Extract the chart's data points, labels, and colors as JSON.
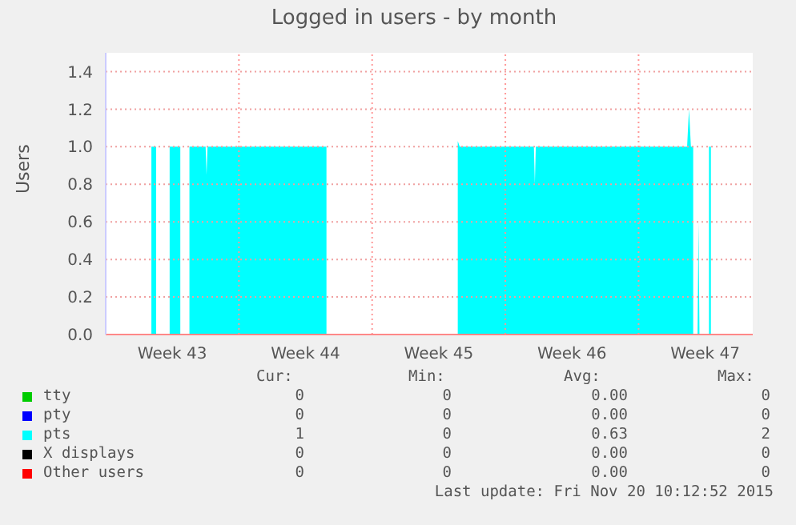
{
  "chart_data": {
    "type": "area",
    "title": "Logged in users - by month",
    "ylabel": "Users",
    "xlim": [
      "2015-10-19T00:00",
      "2015-11-22T00:00"
    ],
    "xticks": [
      {
        "value": "2015-10-22T12:00",
        "label": "Week 43"
      },
      {
        "value": "2015-10-26T00:00",
        "label": null
      },
      {
        "value": "2015-10-29T12:00",
        "label": "Week 44"
      },
      {
        "value": "2015-11-02T00:00",
        "label": null
      },
      {
        "value": "2015-11-05T12:00",
        "label": "Week 45"
      },
      {
        "value": "2015-11-09T00:00",
        "label": null
      },
      {
        "value": "2015-11-12T12:00",
        "label": "Week 46"
      },
      {
        "value": "2015-11-16T00:00",
        "label": null
      },
      {
        "value": "2015-11-19T12:00",
        "label": "Week 47"
      }
    ],
    "ylim": [
      0,
      1.5
    ],
    "yticks": [
      {
        "value": 0,
        "label": "0.0"
      },
      {
        "value": 0.2,
        "label": "0.2"
      },
      {
        "value": 0.4,
        "label": "0.4"
      },
      {
        "value": 0.6,
        "label": "0.6"
      },
      {
        "value": 0.8,
        "label": "0.8"
      },
      {
        "value": 1,
        "label": "1.0"
      },
      {
        "value": 1.2,
        "label": "1.2"
      },
      {
        "value": 1.4,
        "label": "1.4"
      }
    ],
    "grid": true,
    "legend": "bottom",
    "series": [
      {
        "name": "tty",
        "color": "#00cc00"
      },
      {
        "name": "pty",
        "color": "#0000ff"
      },
      {
        "name": "pts",
        "color": "#00ffff",
        "x": [
          "2015-10-19T00:00",
          "2015-10-21T09:36",
          "2015-10-21T09:36",
          "2015-10-21T15:36",
          "2015-10-21T15:36",
          "2015-10-22T08:38",
          "2015-10-22T08:38",
          "2015-10-22T22:05",
          "2015-10-22T22:05",
          "2015-10-23T09:36",
          "2015-10-23T09:36",
          "2015-10-24T06:00",
          "2015-10-24T07:12",
          "2015-10-24T08:24",
          "2015-10-30T14:24",
          "2015-10-30T14:24",
          "2015-11-06T12:00",
          "2015-11-06T12:00",
          "2015-11-06T14:24",
          "2015-11-06T16:48",
          "2015-11-10T12:00",
          "2015-11-10T13:12",
          "2015-11-10T14:24",
          "2015-11-18T13:12",
          "2015-11-18T15:36",
          "2015-11-18T18:00",
          "2015-11-18T20:53",
          "2015-11-18T20:53",
          "2015-11-19T02:24",
          "2015-11-19T03:36",
          "2015-11-19T04:48",
          "2015-11-19T16:48",
          "2015-11-19T16:48",
          "2015-11-19T19:12",
          "2015-11-19T19:12",
          "2015-11-22T00:00"
        ],
        "values": [
          0,
          0,
          1,
          1,
          0,
          0,
          1,
          1,
          0,
          0,
          1,
          1,
          0.85,
          1,
          1,
          0,
          0,
          1.03,
          1,
          1,
          1,
          0.8,
          1,
          1,
          1.2,
          1,
          1,
          0,
          0,
          0.6,
          0,
          0,
          1,
          1,
          0,
          0
        ]
      },
      {
        "name": "X displays",
        "color": "#000000"
      },
      {
        "name": "Other users",
        "color": "#ff0000"
      }
    ],
    "annotations": [
      "Cur:",
      "Min:",
      "Avg:",
      "Max:",
      "0",
      "0",
      "0.00",
      "0",
      "0",
      "0",
      "0.00",
      "0",
      "1",
      "0",
      "0.63",
      "2",
      "0",
      "0",
      "0.00",
      "0",
      "0",
      "0",
      "0.00",
      "0",
      "Last update: Fri Nov 20 10:12:52 2015"
    ]
  }
}
